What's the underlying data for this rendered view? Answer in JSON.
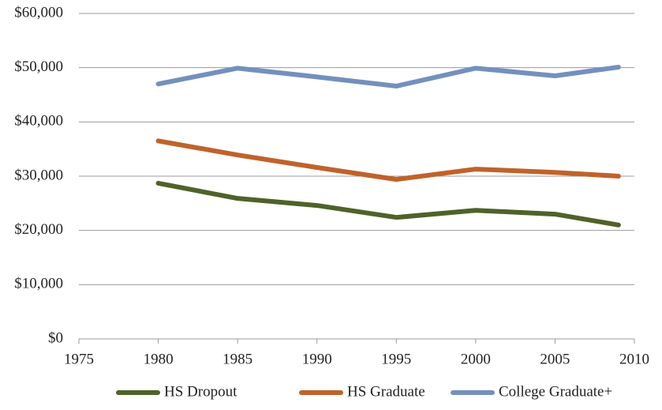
{
  "chart_data": {
    "type": "line",
    "x": [
      1980,
      1985,
      1990,
      1995,
      2000,
      2005,
      2009
    ],
    "series": [
      {
        "name": "HS Dropout",
        "color": "#4f6228",
        "values": [
          28700,
          25900,
          24600,
          22400,
          23700,
          23000,
          21000
        ]
      },
      {
        "name": "HS Graduate",
        "color": "#c0622a",
        "values": [
          36500,
          33900,
          31600,
          29400,
          31300,
          30700,
          30000
        ]
      },
      {
        "name": "College Graduate+",
        "color": "#7390bd",
        "values": [
          47000,
          49900,
          48300,
          46600,
          49900,
          48500,
          50100
        ]
      }
    ],
    "xlim": [
      1975,
      2010
    ],
    "xticks": [
      1975,
      1980,
      1985,
      1990,
      1995,
      2000,
      2005,
      2010
    ],
    "ylim": [
      0,
      60000
    ],
    "yticks": [
      {
        "value": 0,
        "label": "$0"
      },
      {
        "value": 10000,
        "label": "$10,000"
      },
      {
        "value": 20000,
        "label": "$20,000"
      },
      {
        "value": 30000,
        "label": "$30,000"
      },
      {
        "value": 40000,
        "label": "$40,000"
      },
      {
        "value": 50000,
        "label": "$50,000"
      },
      {
        "value": 60000,
        "label": "$60,000"
      }
    ],
    "grid": true,
    "legend": "bottom"
  }
}
